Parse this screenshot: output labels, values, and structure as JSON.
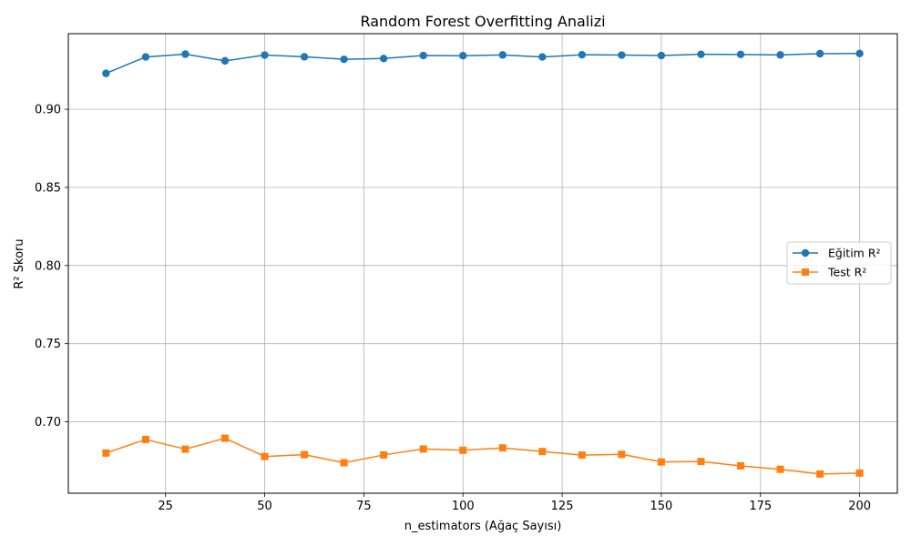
{
  "chart_data": {
    "type": "line",
    "title": "Random Forest Overfitting Analizi",
    "xlabel": "n_estimators (Ağaç Sayısı)",
    "ylabel": "R² Skoru",
    "x": [
      10,
      20,
      30,
      40,
      50,
      60,
      70,
      80,
      90,
      100,
      110,
      120,
      130,
      140,
      150,
      160,
      170,
      180,
      190,
      200
    ],
    "series": [
      {
        "name": "Eğitim R²",
        "color": "#1f77b4",
        "marker": "circle",
        "values": [
          0.923,
          0.9335,
          0.9353,
          0.931,
          0.9347,
          0.9336,
          0.932,
          0.9325,
          0.9344,
          0.9343,
          0.9348,
          0.9335,
          0.9349,
          0.9347,
          0.9344,
          0.9352,
          0.9351,
          0.9348,
          0.9356,
          0.9357
        ]
      },
      {
        "name": "Test R²",
        "color": "#ff7f0e",
        "marker": "square",
        "values": [
          0.68,
          0.6887,
          0.6825,
          0.6895,
          0.6778,
          0.679,
          0.6738,
          0.6788,
          0.6826,
          0.6818,
          0.6833,
          0.681,
          0.6787,
          0.6792,
          0.6743,
          0.6746,
          0.6718,
          0.6696,
          0.6666,
          0.6672
        ]
      }
    ],
    "xlim": [
      0.5,
      209.5
    ],
    "ylim": [
      0.6543,
      0.9484
    ],
    "xticks": [
      25,
      50,
      75,
      100,
      125,
      150,
      175,
      200
    ],
    "yticks": [
      0.7,
      0.75,
      0.8,
      0.85,
      0.9
    ],
    "grid": true,
    "legend_position": "center-right"
  }
}
